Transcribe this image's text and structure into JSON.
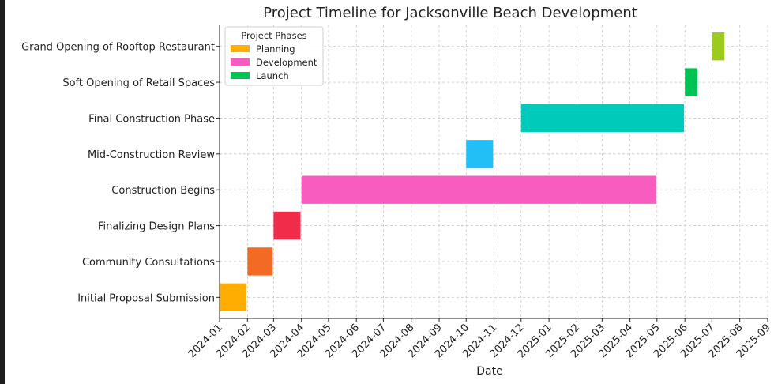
{
  "chart_data": {
    "type": "gantt",
    "title": "Project Timeline for Jacksonville Beach Development",
    "xlabel": "Date",
    "ylabel": "",
    "x_ticks": [
      "2024-01",
      "2024-02",
      "2024-03",
      "2024-04",
      "2024-05",
      "2024-06",
      "2024-07",
      "2024-08",
      "2024-09",
      "2024-10",
      "2024-11",
      "2024-12",
      "2025-01",
      "2025-02",
      "2025-03",
      "2025-04",
      "2025-05",
      "2025-06",
      "2025-07",
      "2025-08",
      "2025-09"
    ],
    "xlim": [
      "2024-01-01",
      "2025-09-01"
    ],
    "grid": true,
    "legend": {
      "title": "Project Phases",
      "placement": "top-left",
      "entries": [
        {
          "name": "Planning",
          "color": "#ffae00"
        },
        {
          "name": "Development",
          "color": "#f95cbf"
        },
        {
          "name": "Launch",
          "color": "#00c353"
        }
      ]
    },
    "tasks": [
      {
        "name": "Initial Proposal Submission",
        "start": "2024-01-01",
        "end": "2024-01-31",
        "color": "#ffae00"
      },
      {
        "name": "Community Consultations",
        "start": "2024-02-01",
        "end": "2024-02-29",
        "color": "#f26a24"
      },
      {
        "name": "Finalizing Design Plans",
        "start": "2024-03-01",
        "end": "2024-03-31",
        "color": "#f12b4a"
      },
      {
        "name": "Construction Begins",
        "start": "2024-04-01",
        "end": "2025-04-30",
        "color": "#f95cbf"
      },
      {
        "name": "Mid-Construction Review",
        "start": "2024-10-01",
        "end": "2024-10-31",
        "color": "#22bff7"
      },
      {
        "name": "Final Construction Phase",
        "start": "2024-12-01",
        "end": "2025-05-31",
        "color": "#00cbbb"
      },
      {
        "name": "Soft Opening of Retail Spaces",
        "start": "2025-06-01",
        "end": "2025-06-15",
        "color": "#00c353"
      },
      {
        "name": "Grand Opening of Rooftop Restaurant",
        "start": "2025-07-01",
        "end": "2025-07-15",
        "color": "#9dca1f"
      }
    ]
  }
}
